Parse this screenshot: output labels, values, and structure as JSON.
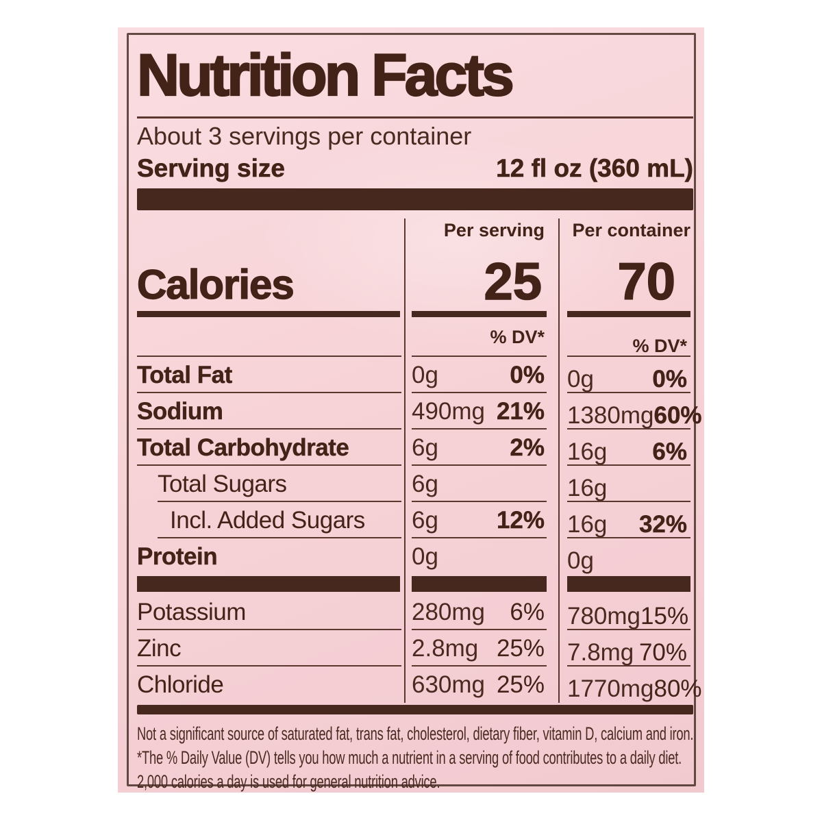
{
  "nf": {
    "title": "Nutrition Facts",
    "servings_per_container": "About 3 servings per container",
    "serving_size": {
      "label": "Serving size",
      "value": "12 fl oz (360 mL)"
    },
    "column_headers": {
      "per_serving": "Per serving",
      "per_container": "Per container"
    },
    "calories": {
      "label": "Calories",
      "per_serving": "25",
      "per_container": "70"
    },
    "dv_header": "% DV*",
    "rows": [
      {
        "name": "Total Fat",
        "ps_amount": "0g",
        "ps_dv": "0%",
        "pc_amount": "0g",
        "pc_dv": "0%"
      },
      {
        "name": "Sodium",
        "ps_amount": "490mg",
        "ps_dv": "21%",
        "pc_amount": "1380mg",
        "pc_dv": "60%"
      },
      {
        "name": "Total Carbohydrate",
        "ps_amount": "6g",
        "ps_dv": "2%",
        "pc_amount": "16g",
        "pc_dv": "6%"
      },
      {
        "name": "Total Sugars",
        "ps_amount": "6g",
        "ps_dv": "",
        "pc_amount": "16g",
        "pc_dv": ""
      },
      {
        "name": "Incl. Added Sugars",
        "ps_amount": "6g",
        "ps_dv": "12%",
        "pc_amount": "16g",
        "pc_dv": "32%"
      },
      {
        "name": "Protein",
        "ps_amount": "0g",
        "ps_dv": "",
        "pc_amount": "0g",
        "pc_dv": ""
      }
    ],
    "minerals": [
      {
        "name": "Potassium",
        "ps_amount": "280mg",
        "ps_dv": "6%",
        "pc_amount": "780mg",
        "pc_dv": "15%"
      },
      {
        "name": "Zinc",
        "ps_amount": "2.8mg",
        "ps_dv": "25%",
        "pc_amount": "7.8mg",
        "pc_dv": "70%"
      },
      {
        "name": "Chloride",
        "ps_amount": "630mg",
        "ps_dv": "25%",
        "pc_amount": "1770mg",
        "pc_dv": "80%"
      }
    ],
    "footnotes": {
      "not_significant": "Not a significant source of saturated fat, trans fat, cholesterol, dietary fiber, vitamin D, calcium and iron.",
      "dv_line1": "*The % Daily Value (DV) tells you how much a nutrient in a serving of food contributes to a daily diet.",
      "dv_line2": "2,000 calories a day is used for general nutrition advice."
    },
    "colors": {
      "background": "#f7d3d7",
      "text": "#432218",
      "bar": "#46281e"
    }
  }
}
